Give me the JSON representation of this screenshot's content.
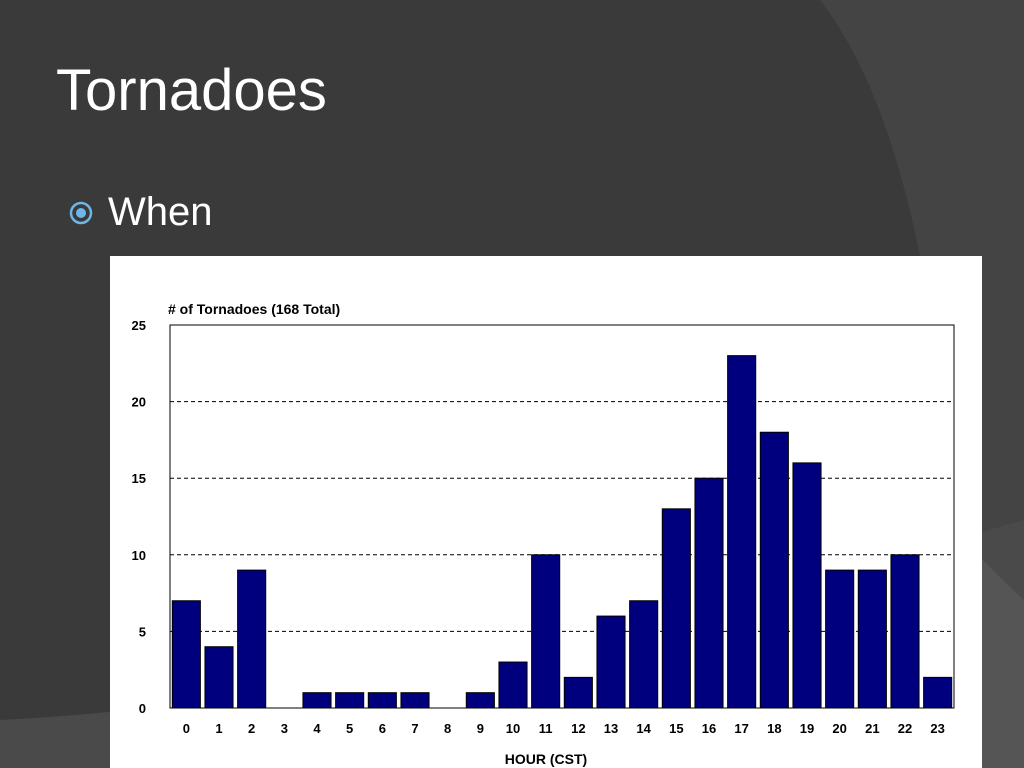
{
  "slide": {
    "title": "Tornadoes",
    "bullet": "When"
  },
  "colors": {
    "background": "#3a3a3a",
    "bar": "#00007f",
    "text": "#ffffff",
    "bullet": "#6fb6e8"
  },
  "chart_data": {
    "type": "bar",
    "ylabel": "# of Tornadoes (168 Total)",
    "xlabel": "HOUR (CST)",
    "categories": [
      "0",
      "1",
      "2",
      "3",
      "4",
      "5",
      "6",
      "7",
      "8",
      "9",
      "10",
      "11",
      "12",
      "13",
      "14",
      "15",
      "16",
      "17",
      "18",
      "19",
      "20",
      "21",
      "22",
      "23"
    ],
    "values": [
      7,
      4,
      9,
      0,
      1,
      1,
      1,
      1,
      0,
      1,
      3,
      10,
      2,
      6,
      7,
      13,
      15,
      23,
      18,
      16,
      9,
      9,
      10,
      2
    ],
    "ylim": [
      0,
      25
    ],
    "yticks": [
      0,
      5,
      10,
      15,
      20,
      25
    ],
    "grid": "dashed horizontal"
  }
}
